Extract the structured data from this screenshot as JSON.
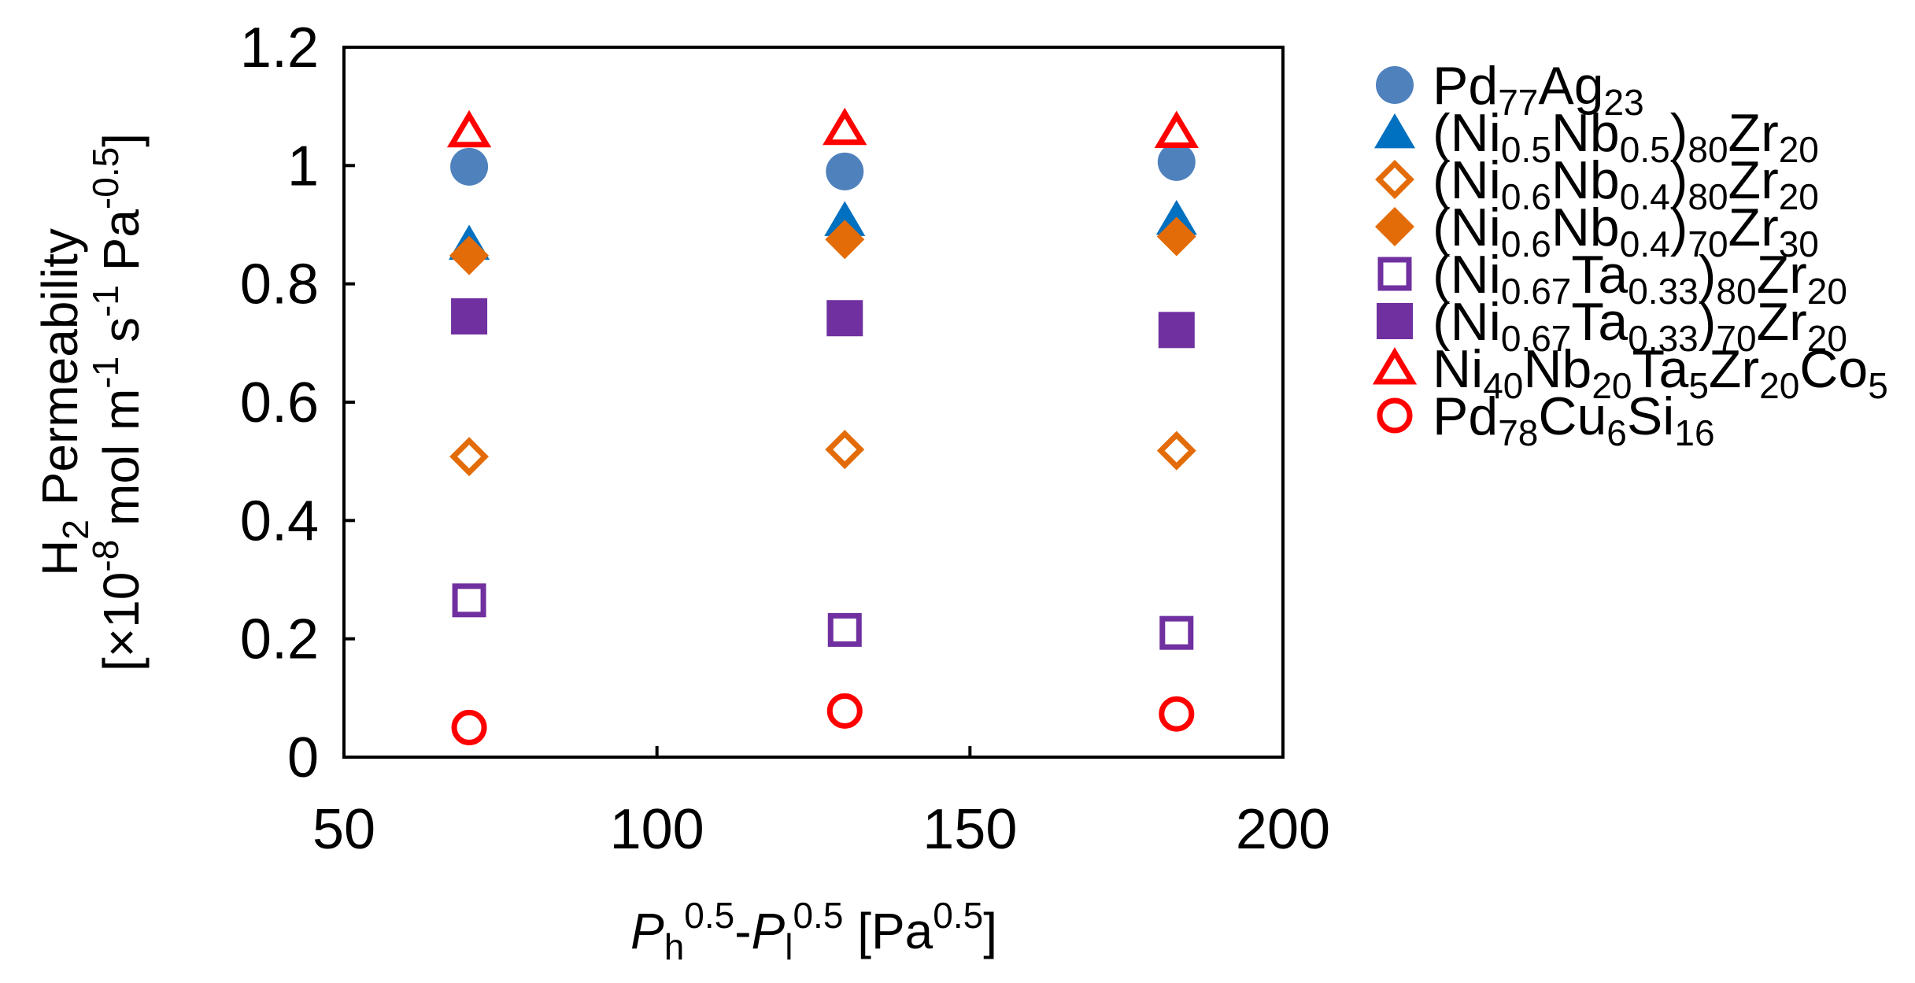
{
  "chart_data": {
    "type": "scatter",
    "xlabel": {
      "p1": "P",
      "p1_sub": "h",
      "p1_sup": "0.5",
      "dash": "-",
      "p2": "P",
      "p2_sub": "l",
      "p2_sup": "0.5",
      "unit_open": " [Pa",
      "unit_sup": "0.5",
      "unit_close": "]"
    },
    "ylabel": {
      "line1": {
        "a": "H",
        "a_sub": "2",
        "b": " Permeability"
      },
      "line2": {
        "a": "[×10",
        "a_sup": "-8",
        "b": " mol m",
        "b_sup": "-1",
        "c": " s",
        "c_sup": "-1",
        "d": " Pa",
        "d_sup": "-0.5",
        "e": "]"
      }
    },
    "xlim": [
      50,
      200
    ],
    "ylim": [
      0,
      1.2
    ],
    "xticks": [
      "50",
      "100",
      "150",
      "200"
    ],
    "yticks": [
      "0",
      "0.2",
      "0.4",
      "0.6",
      "0.8",
      "1",
      "1.2"
    ],
    "x": [
      70,
      130,
      183
    ],
    "series": [
      {
        "name": "Pd77Ag23",
        "label": [
          [
            "Pd",
            ""
          ],
          [
            "77",
            "sub"
          ],
          [
            "Ag",
            ""
          ],
          [
            "23",
            "sub"
          ]
        ],
        "marker": "circle",
        "filled": true,
        "color": "#4f81bd",
        "values": [
          0.998,
          0.99,
          1.006
        ]
      },
      {
        "name": "(Ni0.5Nb0.5)80Zr20",
        "label": [
          [
            "(Ni",
            ""
          ],
          [
            "0.5",
            "sub"
          ],
          [
            "Nb",
            ""
          ],
          [
            "0.5",
            "sub"
          ],
          [
            ")",
            ""
          ],
          [
            "80",
            "sub"
          ],
          [
            "Zr",
            ""
          ],
          [
            "20",
            "sub"
          ]
        ],
        "marker": "triangle",
        "filled": true,
        "color": "#0070c0",
        "values": [
          0.868,
          0.908,
          0.91
        ]
      },
      {
        "name": "(Ni0.6Nb0.4)80Zr20",
        "label": [
          [
            "(Ni",
            ""
          ],
          [
            "0.6",
            "sub"
          ],
          [
            "Nb",
            ""
          ],
          [
            "0.4",
            "sub"
          ],
          [
            ")",
            ""
          ],
          [
            "80",
            "sub"
          ],
          [
            "Zr",
            ""
          ],
          [
            "20",
            "sub"
          ]
        ],
        "marker": "diamond",
        "filled": false,
        "color": "#e36c09",
        "values": [
          0.508,
          0.52,
          0.518
        ]
      },
      {
        "name": "(Ni0.6Nb0.4)70Zr30",
        "label": [
          [
            "(Ni",
            ""
          ],
          [
            "0.6",
            "sub"
          ],
          [
            "Nb",
            ""
          ],
          [
            "0.4",
            "sub"
          ],
          [
            ")",
            ""
          ],
          [
            "70",
            "sub"
          ],
          [
            "Zr",
            ""
          ],
          [
            "30",
            "sub"
          ]
        ],
        "marker": "diamond",
        "filled": true,
        "color": "#e36c09",
        "values": [
          0.848,
          0.875,
          0.88
        ]
      },
      {
        "name": "(Ni0.67Ta0.33)80Zr20",
        "label": [
          [
            "(Ni",
            ""
          ],
          [
            "0.67",
            "sub"
          ],
          [
            "Ta",
            ""
          ],
          [
            "0.33",
            "sub"
          ],
          [
            ")",
            ""
          ],
          [
            "80",
            "sub"
          ],
          [
            "Zr",
            ""
          ],
          [
            "20",
            "sub"
          ]
        ],
        "marker": "square",
        "filled": false,
        "color": "#7030a0",
        "values": [
          0.265,
          0.215,
          0.21
        ]
      },
      {
        "name": "(Ni0.67Ta0.33)70Zr20",
        "label": [
          [
            "(Ni",
            ""
          ],
          [
            "0.67",
            "sub"
          ],
          [
            "Ta",
            ""
          ],
          [
            "0.33",
            "sub"
          ],
          [
            ")",
            ""
          ],
          [
            "70",
            "sub"
          ],
          [
            "Zr",
            ""
          ],
          [
            "20",
            "sub"
          ]
        ],
        "marker": "square",
        "filled": true,
        "color": "#7030a0",
        "values": [
          0.745,
          0.742,
          0.722
        ]
      },
      {
        "name": "Ni40Nb20Ta5Zr20Co5",
        "label": [
          [
            "Ni",
            ""
          ],
          [
            "40",
            "sub"
          ],
          [
            "Nb",
            ""
          ],
          [
            "20",
            "sub"
          ],
          [
            "Ta",
            ""
          ],
          [
            "5",
            "sub"
          ],
          [
            "Zr",
            ""
          ],
          [
            "20",
            "sub"
          ],
          [
            "Co",
            ""
          ],
          [
            "5",
            "sub"
          ]
        ],
        "marker": "triangle",
        "filled": false,
        "color": "#ff0000",
        "values": [
          1.058,
          1.062,
          1.057
        ]
      },
      {
        "name": "Pd78Cu6Si16",
        "label": [
          [
            "Pd",
            ""
          ],
          [
            "78",
            "sub"
          ],
          [
            "Cu",
            ""
          ],
          [
            "6",
            "sub"
          ],
          [
            "Si",
            ""
          ],
          [
            "16",
            "sub"
          ]
        ],
        "marker": "circle",
        "filled": false,
        "color": "#ff0000",
        "values": [
          0.05,
          0.078,
          0.073
        ]
      }
    ],
    "grid": false,
    "legend": "right"
  }
}
